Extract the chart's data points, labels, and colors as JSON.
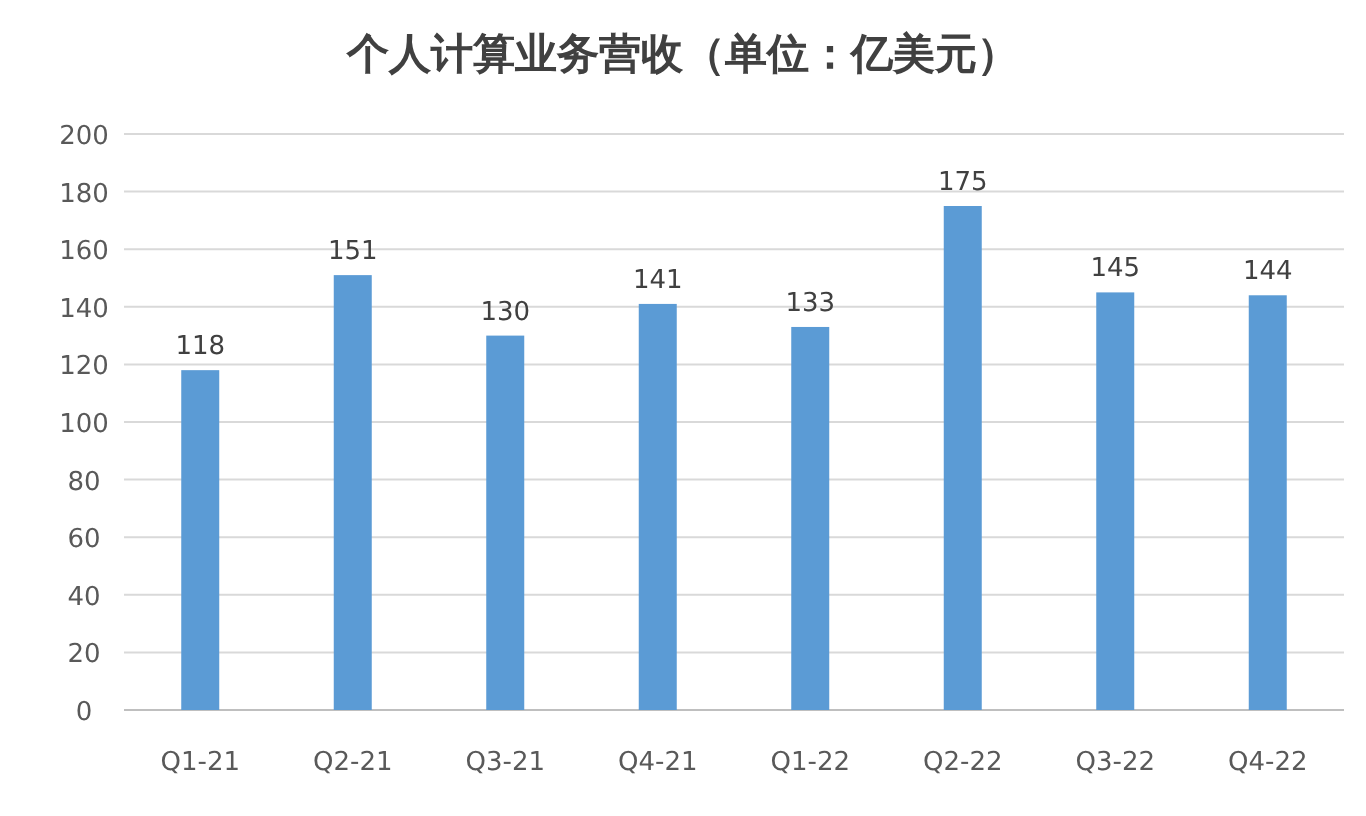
{
  "chart_data": {
    "type": "bar",
    "title": "个人计算业务营收（单位：亿美元）",
    "categories": [
      "Q1-21",
      "Q2-21",
      "Q3-21",
      "Q4-21",
      "Q1-22",
      "Q2-22",
      "Q3-22",
      "Q4-22"
    ],
    "values": [
      118,
      151,
      130,
      141,
      133,
      175,
      145,
      144
    ],
    "color": "#5b9bd5",
    "ylim": [
      0,
      200
    ],
    "yticks": [
      0,
      20,
      40,
      60,
      80,
      100,
      120,
      140,
      160,
      180,
      200
    ],
    "grid": "y",
    "data_labels": true
  }
}
